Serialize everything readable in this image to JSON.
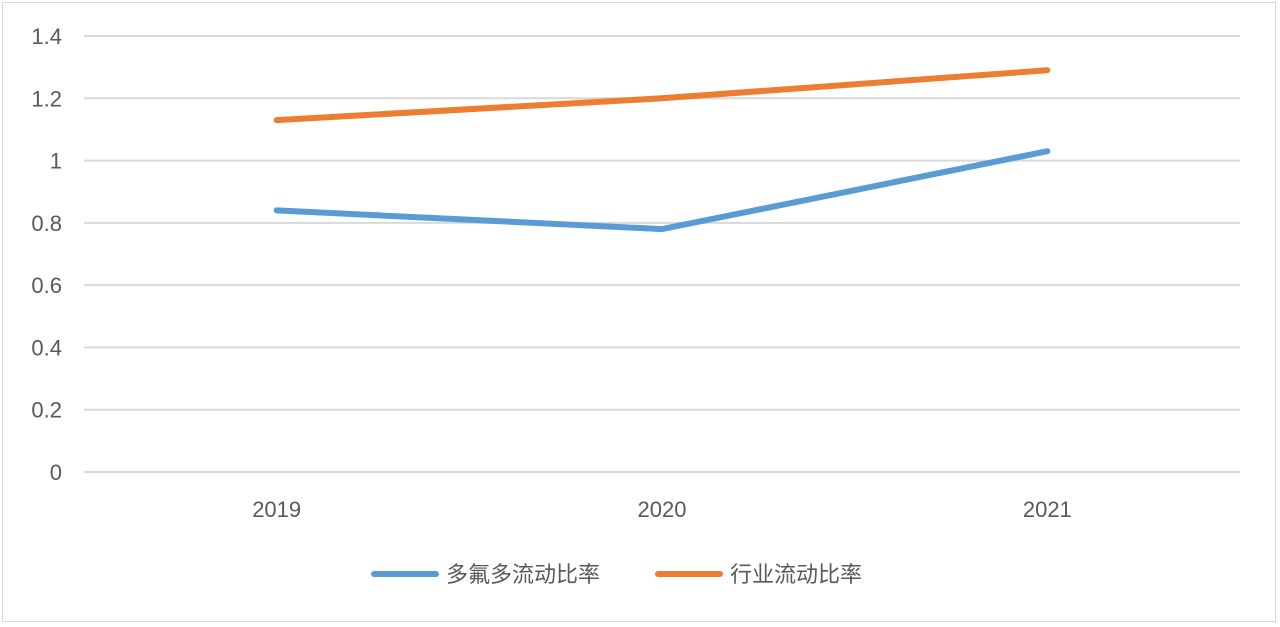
{
  "chart_data": {
    "type": "line",
    "categories": [
      "2019",
      "2020",
      "2021"
    ],
    "series": [
      {
        "name": "多氟多流动比率",
        "values": [
          0.84,
          0.78,
          1.03
        ],
        "color": "#5b9bd5"
      },
      {
        "name": "行业流动比率",
        "values": [
          1.13,
          1.2,
          1.29
        ],
        "color": "#ed7d31"
      }
    ],
    "yticks": [
      "0",
      "0.2",
      "0.4",
      "0.6",
      "0.8",
      "1",
      "1.2",
      "1.4"
    ],
    "ylim": [
      0,
      1.4
    ],
    "grid": true,
    "legend": "bottom",
    "gridline_color": "#d9d9d9"
  }
}
